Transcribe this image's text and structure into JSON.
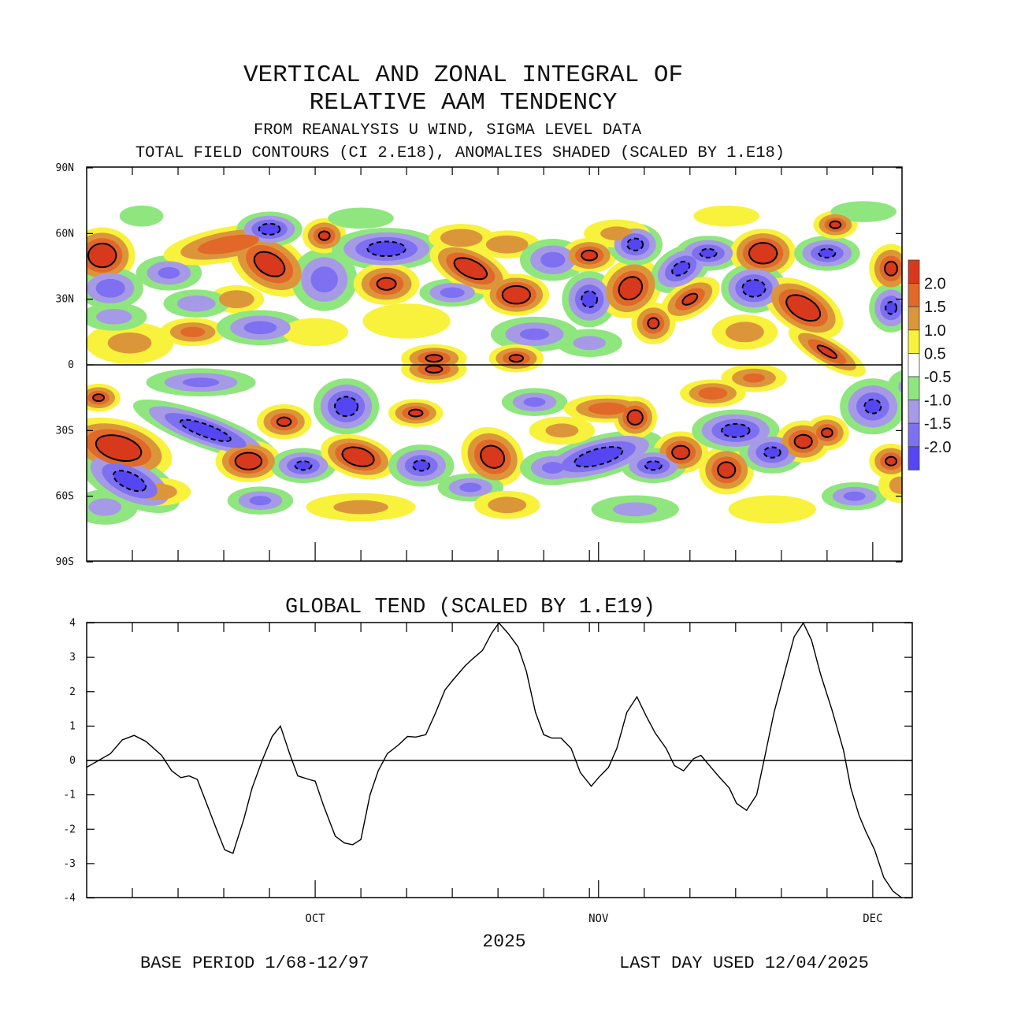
{
  "titles": {
    "line1": "VERTICAL AND ZONAL INTEGRAL OF",
    "line2": "RELATIVE AAM TENDENCY",
    "line3": "FROM REANALYSIS U WIND,  SIGMA LEVEL DATA",
    "line4": "TOTAL FIELD CONTOURS (CI 2.E18),  ANOMALIES SHADED (SCALED BY 1.E18)"
  },
  "footer": {
    "year": "2025",
    "base_period": "BASE PERIOD  1/68-12/97",
    "last_day": "LAST DAY USED 12/04/2025"
  },
  "chart_data": [
    {
      "type": "heatmap",
      "xlim": [
        0,
        89.2
      ],
      "ylim": [
        -90,
        90
      ],
      "yticks": [
        {
          "value": 90,
          "label": "90N"
        },
        {
          "value": 60,
          "label": "60N"
        },
        {
          "value": 30,
          "label": "30N"
        },
        {
          "value": 0,
          "label": "0"
        },
        {
          "value": -30,
          "label": "30S"
        },
        {
          "value": -60,
          "label": "60S"
        },
        {
          "value": -90,
          "label": "90S"
        }
      ],
      "xticks": [
        5,
        10,
        15,
        20,
        25,
        30,
        35,
        40,
        45,
        50,
        55,
        56,
        61,
        66,
        71,
        76,
        81,
        86
      ],
      "legend": {
        "placement": "right",
        "levels": [
          "2.0",
          "1.5",
          "1.0",
          "0.5",
          "-0.5",
          "-1.0",
          "-1.5",
          "-2.0"
        ],
        "colors": [
          "#d8381c",
          "#e2682a",
          "#dc963a",
          "#f8f23c",
          "#ffffff",
          "#8fe67f",
          "#a69ae6",
          "#7e70f0",
          "#5646f2"
        ]
      },
      "anomaly_centers": [
        [
          1.7,
          50,
          2.6,
          3,
          8,
          0
        ],
        [
          2.6,
          35,
          -1.8,
          3,
          6,
          0
        ],
        [
          4.7,
          10,
          1.0,
          4,
          6,
          0
        ],
        [
          9,
          42,
          -1.5,
          3,
          5,
          0
        ],
        [
          15.5,
          55,
          1.9,
          6,
          5,
          -10
        ],
        [
          20,
          46,
          2.4,
          4,
          8,
          30
        ],
        [
          20,
          62,
          -2.2,
          3,
          5,
          0
        ],
        [
          16.4,
          30,
          1.4,
          2.5,
          4,
          0
        ],
        [
          11.6,
          15,
          1.6,
          3,
          4,
          0
        ],
        [
          19,
          17,
          -1.6,
          4,
          5,
          0
        ],
        [
          26,
          39,
          -1.7,
          3,
          9,
          0
        ],
        [
          26,
          59,
          2.0,
          2,
          5,
          0
        ],
        [
          32.8,
          53,
          -2.3,
          5,
          6,
          0
        ],
        [
          32.8,
          37,
          2.1,
          3,
          6,
          0
        ],
        [
          40,
          33,
          -1.6,
          3,
          4,
          0
        ],
        [
          42,
          44,
          2.5,
          4,
          6,
          25
        ],
        [
          47,
          32,
          2.6,
          3,
          6,
          0
        ],
        [
          46,
          55,
          1.4,
          3,
          4,
          0
        ],
        [
          51,
          48,
          -1.6,
          3,
          6,
          0
        ],
        [
          55,
          50,
          2.1,
          2.5,
          5,
          0
        ],
        [
          55,
          30,
          -2.1,
          2.5,
          8,
          0
        ],
        [
          49,
          14,
          -1.5,
          4,
          5,
          0
        ],
        [
          59.5,
          35,
          2.4,
          3,
          8,
          -40
        ],
        [
          62,
          19,
          2.0,
          2,
          6,
          0
        ],
        [
          60,
          55,
          -2.1,
          2.5,
          6,
          0
        ],
        [
          65,
          44,
          -2.1,
          3,
          6,
          -30
        ],
        [
          68,
          51,
          -2.0,
          3,
          5,
          0
        ],
        [
          66,
          30,
          2.0,
          3,
          5,
          -30
        ],
        [
          74,
          51,
          2.6,
          3,
          7,
          0
        ],
        [
          73,
          35,
          -2.3,
          3,
          7,
          0
        ],
        [
          78.4,
          26,
          2.6,
          4,
          7,
          30
        ],
        [
          81,
          51,
          -2.0,
          3,
          5,
          0
        ],
        [
          81.9,
          64,
          2.0,
          2,
          4,
          0
        ],
        [
          81,
          6,
          2.0,
          4,
          4,
          30
        ],
        [
          88,
          44,
          2.1,
          2,
          7,
          0
        ],
        [
          88,
          26,
          -2.0,
          2,
          7,
          0
        ],
        [
          41,
          58,
          1.4,
          3,
          4,
          0
        ],
        [
          38,
          3,
          2.0,
          3,
          4,
          0
        ],
        [
          47,
          3,
          2.0,
          2.5,
          4,
          0
        ],
        [
          6,
          68,
          -0.8,
          2,
          3,
          0
        ],
        [
          30,
          67,
          -0.8,
          3,
          3,
          0
        ],
        [
          70,
          68,
          0.8,
          3,
          3,
          0
        ],
        [
          85,
          70,
          -0.8,
          3,
          3,
          0
        ],
        [
          12,
          28,
          -1.2,
          3,
          4,
          0
        ],
        [
          35,
          20,
          0.9,
          4,
          5,
          0
        ],
        [
          55,
          10,
          -1.0,
          3,
          4,
          0
        ],
        [
          72,
          15,
          1.2,
          3,
          5,
          0
        ],
        [
          25,
          15,
          0.8,
          3,
          4,
          0
        ],
        [
          3,
          22,
          -1.1,
          3,
          4,
          0
        ],
        [
          58,
          60,
          1.0,
          3,
          4,
          0
        ],
        [
          1.3,
          -15,
          2.0,
          2,
          4,
          0
        ],
        [
          3.5,
          -38,
          2.6,
          5,
          8,
          15
        ],
        [
          4.7,
          -53,
          -2.2,
          5,
          7,
          25
        ],
        [
          13,
          -30,
          -2.3,
          7,
          5,
          20
        ],
        [
          12.5,
          -8,
          -1.5,
          5,
          4,
          0
        ],
        [
          17.7,
          -44,
          2.5,
          3,
          6,
          0
        ],
        [
          21.6,
          -26,
          2.0,
          2.5,
          5,
          0
        ],
        [
          23.7,
          -46,
          -2.0,
          3,
          5,
          0
        ],
        [
          28.4,
          -19,
          -2.3,
          3,
          8,
          0
        ],
        [
          29.7,
          -42,
          2.6,
          3.5,
          6,
          15
        ],
        [
          38,
          -2,
          2.0,
          3,
          4,
          0
        ],
        [
          36,
          -22,
          2.0,
          2.5,
          4,
          0
        ],
        [
          36.6,
          -46,
          -2.0,
          3,
          6,
          0
        ],
        [
          44.4,
          -42,
          2.4,
          3,
          8,
          35
        ],
        [
          42,
          -56,
          -1.5,
          3,
          4,
          0
        ],
        [
          49,
          -17,
          -1.5,
          3,
          4,
          0
        ],
        [
          51,
          -47,
          -1.5,
          3,
          5,
          0
        ],
        [
          56,
          -42,
          -2.4,
          6,
          6,
          -15
        ],
        [
          57,
          -20,
          1.8,
          4,
          4,
          0
        ],
        [
          60,
          -24,
          2.3,
          2,
          6,
          0
        ],
        [
          65,
          -40,
          2.2,
          2.5,
          6,
          0
        ],
        [
          62,
          -46,
          -2.0,
          3,
          5,
          0
        ],
        [
          68.5,
          -13,
          1.8,
          3,
          4,
          0
        ],
        [
          70,
          -48,
          2.2,
          2.5,
          7,
          0
        ],
        [
          71,
          -30,
          -2.2,
          4,
          6,
          0
        ],
        [
          75,
          -40,
          -2.0,
          3,
          6,
          0
        ],
        [
          78.4,
          -35,
          2.2,
          2.5,
          6,
          0
        ],
        [
          81,
          -31,
          2.0,
          2,
          5,
          0
        ],
        [
          86,
          -19,
          -2.0,
          3,
          8,
          0
        ],
        [
          88,
          -44,
          2.0,
          2,
          5,
          0
        ],
        [
          73,
          -6,
          1.5,
          3,
          4,
          0
        ],
        [
          84,
          -60,
          -1.5,
          3,
          4,
          0
        ],
        [
          19,
          -62,
          -1.5,
          3,
          4,
          0
        ],
        [
          46,
          -64,
          1.2,
          3,
          4,
          0
        ],
        [
          7.8,
          -58,
          1.2,
          3,
          4,
          0
        ],
        [
          2,
          -65,
          -1.0,
          3,
          5,
          0
        ],
        [
          30,
          -65,
          1.0,
          5,
          4,
          0
        ],
        [
          60,
          -66,
          -1.0,
          4,
          4,
          0
        ],
        [
          75,
          -66,
          0.9,
          4,
          4,
          0
        ],
        [
          89,
          -55,
          1.0,
          2,
          5,
          0
        ],
        [
          52,
          -30,
          1.0,
          3,
          4,
          0
        ],
        [
          90,
          -10,
          -1.0,
          2,
          5,
          0
        ]
      ]
    },
    {
      "type": "line",
      "title": "GLOBAL TEND (SCALED BY 1.E19)",
      "xlabel": "2025",
      "xlim": [
        0,
        89.2
      ],
      "ylim": [
        -4,
        4
      ],
      "yticks": [
        4,
        3,
        2,
        1,
        0,
        -1,
        -2,
        -3,
        -4
      ],
      "xtick_labels": [
        {
          "day": 25,
          "label": "OCT"
        },
        {
          "day": 56,
          "label": "NOV"
        },
        {
          "day": 86,
          "label": "DEC"
        }
      ],
      "xticks": [
        5,
        10,
        15,
        20,
        25,
        30,
        35,
        40,
        45,
        50,
        55,
        56,
        61,
        66,
        71,
        76,
        81,
        86
      ],
      "series": [
        {
          "x": [
            0,
            1.3,
            2.6,
            3.9,
            5.2,
            6.5,
            8.2,
            9.3,
            10.3,
            11.2,
            12.1,
            12.9,
            14.2,
            15.1,
            16.0,
            17.2,
            18.1,
            19.2,
            20.3,
            21.2,
            22.2,
            23.1,
            24.3,
            25.0,
            25.9,
            27.2,
            28.2,
            29.1,
            30.0,
            31.0,
            31.9,
            32.9,
            34.1,
            35.1,
            36.0,
            37.1,
            38.2,
            39.2,
            40.1,
            41.4,
            42.2,
            43.3,
            44.3,
            45.1,
            46.1,
            47.2,
            48.1,
            49.1,
            50.0,
            50.9,
            51.9,
            53.0,
            54.0,
            55.2,
            56.0,
            57.1,
            58.0,
            59.1,
            60.2,
            61.2,
            62.2,
            63.4,
            64.3,
            65.3,
            66.4,
            67.2,
            68.3,
            69.1,
            70.3,
            71.1,
            72.2,
            73.3,
            74.1,
            75.2,
            76.3,
            77.4,
            78.4,
            79.3,
            80.3,
            81.5,
            82.8,
            83.6,
            84.5,
            85.3,
            86.2,
            87.2,
            88.2,
            89.2
          ],
          "y": [
            -0.2,
            0.0,
            0.2,
            0.6,
            0.73,
            0.55,
            0.15,
            -0.3,
            -0.5,
            -0.45,
            -0.55,
            -1.1,
            -2.0,
            -2.6,
            -2.7,
            -1.7,
            -0.8,
            0.0,
            0.7,
            1.0,
            0.2,
            -0.45,
            -0.55,
            -0.6,
            -1.3,
            -2.2,
            -2.4,
            -2.45,
            -2.3,
            -1.0,
            -0.3,
            0.2,
            0.45,
            0.7,
            0.68,
            0.75,
            1.4,
            2.05,
            2.35,
            2.75,
            2.95,
            3.2,
            3.7,
            4.0,
            3.7,
            3.3,
            2.6,
            1.4,
            0.75,
            0.65,
            0.65,
            0.35,
            -0.35,
            -0.75,
            -0.5,
            -0.2,
            0.35,
            1.4,
            1.85,
            1.3,
            0.8,
            0.35,
            -0.15,
            -0.3,
            0.05,
            0.15,
            -0.2,
            -0.45,
            -0.8,
            -1.25,
            -1.45,
            -1.0,
            0.0,
            1.4,
            2.5,
            3.6,
            4.0,
            3.5,
            2.5,
            1.5,
            0.3,
            -0.8,
            -1.6,
            -2.1,
            -2.6,
            -3.4,
            -3.8,
            -4.0
          ]
        }
      ]
    }
  ]
}
